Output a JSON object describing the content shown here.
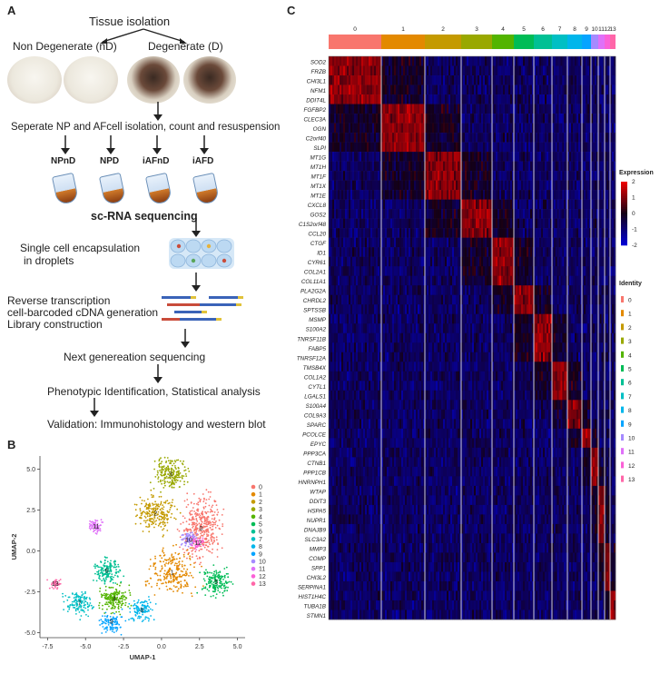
{
  "panel_a": {
    "letter": "A",
    "tissue_isolation": "Tissue isolation",
    "non_degenerate": "Non Degenerate (nD)",
    "degenerate": "Degenerate (D)",
    "separate": "Seperate NP and AFcell isolation, count and resuspension",
    "groups": [
      "NPnD",
      "NPD",
      "iAFnD",
      "iAFD"
    ],
    "sc_rna": "sc-RNA sequencing",
    "encapsulation_1": "Single cell encapsulation",
    "encapsulation_2": "in droplets",
    "rt_1": "Reverse transcription",
    "rt_2": "cell-barcoded cDNA generation",
    "rt_3": "Library construction",
    "ngs": "Next genereation sequencing",
    "phenotypic": "Phenotypic Identification, Statistical analysis",
    "validation": "Validation: Immunohistology and western blot"
  },
  "panel_b": {
    "letter": "B",
    "chart_data": {
      "type": "scatter",
      "xlabel": "UMAP-1",
      "ylabel": "UMAP-2",
      "xticks": [
        "-7.5",
        "-5.0",
        "-2.5",
        "0.0",
        "2.5",
        "5.0"
      ],
      "yticks": [
        "5.0",
        "2.5",
        "0.0",
        "-2.5",
        "-5.0"
      ],
      "xlim": [
        -8,
        5.5
      ],
      "ylim": [
        -5.3,
        5.8
      ],
      "clusters": [
        {
          "name": "0",
          "color": "#f8766d",
          "center": [
            2.6,
            1.4
          ]
        },
        {
          "name": "1",
          "color": "#e38900",
          "center": [
            0.7,
            -1.3
          ]
        },
        {
          "name": "2",
          "color": "#c49a00",
          "center": [
            -0.4,
            2.3
          ]
        },
        {
          "name": "3",
          "color": "#99a800",
          "center": [
            0.6,
            4.7
          ]
        },
        {
          "name": "4",
          "color": "#53b400",
          "center": [
            -3.1,
            -2.9
          ]
        },
        {
          "name": "5",
          "color": "#00bc56",
          "center": [
            3.6,
            -1.9
          ]
        },
        {
          "name": "6",
          "color": "#00c094",
          "center": [
            -3.6,
            -1.2
          ]
        },
        {
          "name": "7",
          "color": "#00bfc4",
          "center": [
            -5.4,
            -3.2
          ]
        },
        {
          "name": "8",
          "color": "#00b6eb",
          "center": [
            -1.3,
            -3.6
          ]
        },
        {
          "name": "9",
          "color": "#06a4ff",
          "center": [
            -3.3,
            -4.3
          ]
        },
        {
          "name": "10",
          "color": "#a58aff",
          "center": [
            1.8,
            0.7
          ]
        },
        {
          "name": "11",
          "color": "#df70f8",
          "center": [
            -4.3,
            1.5
          ]
        },
        {
          "name": "12",
          "color": "#fb61d7",
          "center": [
            2.4,
            0.5
          ]
        },
        {
          "name": "13",
          "color": "#ff66a8",
          "center": [
            -7.0,
            -2.0
          ]
        }
      ]
    }
  },
  "panel_c": {
    "letter": "C",
    "chart_data": {
      "type": "heatmap",
      "clusters": [
        "0",
        "1",
        "2",
        "3",
        "4",
        "5",
        "6",
        "7",
        "8",
        "9",
        "10",
        "11",
        "12",
        "13"
      ],
      "cluster_colors": [
        "#f8766d",
        "#e38900",
        "#c49a00",
        "#99a800",
        "#53b400",
        "#00bc56",
        "#00c094",
        "#00bfc4",
        "#00b6eb",
        "#06a4ff",
        "#a58aff",
        "#df70f8",
        "#fb61d7",
        "#ff66a8"
      ],
      "cluster_widths": [
        58,
        48,
        40,
        34,
        24,
        22,
        20,
        17,
        16,
        10,
        8,
        7,
        6,
        6
      ],
      "genes": [
        "SOD2",
        "FRZB",
        "CHI3L1",
        "NFM1",
        "DDIT4L",
        "FGFBP2",
        "CLEC3A",
        "OGN",
        "C2orf40",
        "SLPI",
        "MT1G",
        "MT1H",
        "MT1F",
        "MT1X",
        "MT1E",
        "CXCL8",
        "GOS2",
        "C1S2orf48",
        "CCL20",
        "CTGF",
        "ID1",
        "CYR61",
        "COL2A1",
        "COL11A1",
        "PLA2G2A",
        "CHRDL2",
        "SPTSSB",
        "MSMP",
        "S100A2",
        "TNRSF11B",
        "FABP5",
        "TNRSF12A",
        "TMSB4X",
        "COL1A2",
        "CYTL1",
        "LGALS1",
        "S100A4",
        "COL9A3",
        "SPARC",
        "PCOLCE",
        "EPYC",
        "PPP3CA",
        "CTNB1",
        "PPP1CB",
        "HNRNPH1",
        "WTAP",
        "DDIT3",
        "HSPA5",
        "NUPR1",
        "DNAJB9",
        "SLC3A2",
        "MMP3",
        "COMP",
        "SPP1",
        "CHI3L2",
        "SERPINA1",
        "HIST1H4C",
        "TUBA1B",
        "STMN1"
      ],
      "highlight_cluster": [
        0,
        0,
        0,
        0,
        0,
        1,
        1,
        1,
        1,
        1,
        2,
        2,
        2,
        2,
        2,
        3,
        3,
        3,
        3,
        4,
        4,
        4,
        4,
        4,
        5,
        5,
        5,
        6,
        6,
        6,
        6,
        6,
        7,
        7,
        7,
        7,
        8,
        8,
        8,
        9,
        9,
        10,
        10,
        10,
        10,
        11,
        11,
        11,
        11,
        11,
        11,
        12,
        12,
        12,
        12,
        12,
        13,
        13,
        13
      ],
      "legend_expression_title": "Expression",
      "legend_expression_ticks": [
        "2",
        "1",
        "0",
        "-1",
        "-2"
      ],
      "legend_identity_title": "Identity"
    }
  }
}
